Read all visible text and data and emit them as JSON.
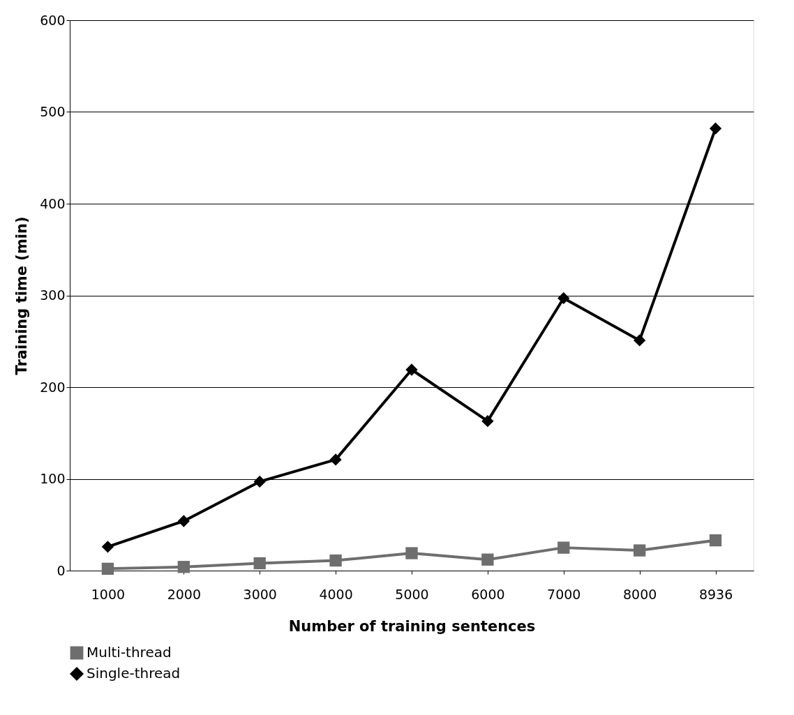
{
  "chart_data": {
    "type": "line",
    "xlabel": "Number of training sentences",
    "ylabel": "Training time (min)",
    "categories": [
      "1000",
      "2000",
      "3000",
      "4000",
      "5000",
      "6000",
      "7000",
      "8000",
      "8936"
    ],
    "series": [
      {
        "name": "Multi-thread",
        "color": "#6e6e6e",
        "marker": "square",
        "values": [
          2,
          4,
          8,
          11,
          19,
          12,
          25,
          22,
          33
        ]
      },
      {
        "name": "Single-thread",
        "color": "#000000",
        "marker": "diamond",
        "values": [
          26,
          54,
          97,
          121,
          219,
          163,
          297,
          251,
          482
        ]
      }
    ],
    "ylim": [
      0,
      600
    ],
    "yticks": [
      0,
      100,
      200,
      300,
      400,
      500,
      600
    ],
    "grid": "y",
    "legend": "bottom",
    "line_style": "solid"
  }
}
